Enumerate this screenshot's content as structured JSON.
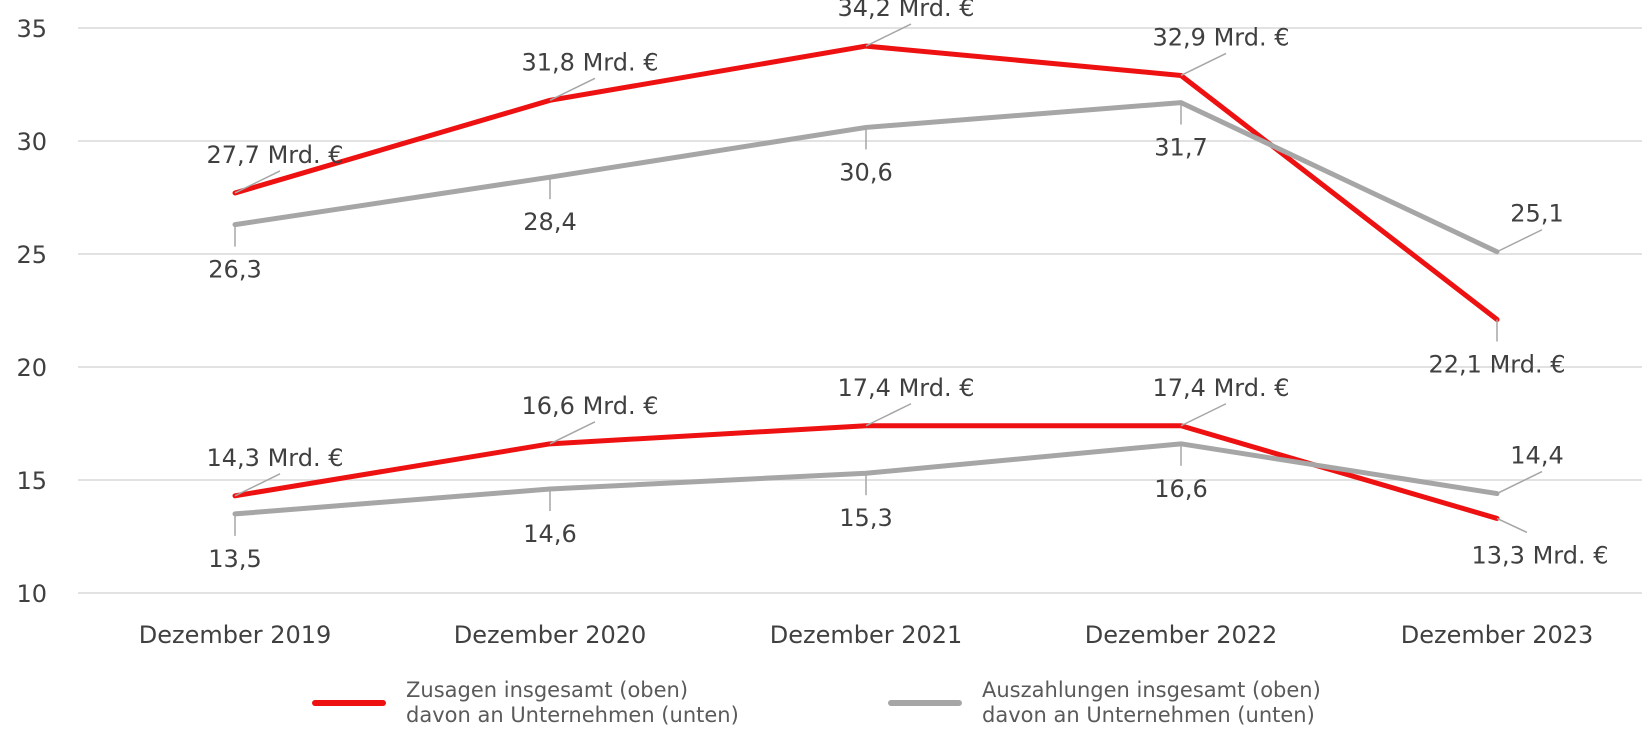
{
  "chart_data": {
    "type": "line",
    "categories": [
      "Dezember 2019",
      "Dezember 2020",
      "Dezember 2021",
      "Dezember 2022",
      "Dezember 2023"
    ],
    "ylim": [
      10,
      35
    ],
    "yticks": [
      "10",
      "15",
      "20",
      "25",
      "30",
      "35"
    ],
    "grid": true,
    "legend_position": "bottom",
    "series": [
      {
        "name": "Zusagen insgesamt (oben)",
        "color": "#ee1111",
        "values": [
          27.7,
          31.8,
          34.2,
          32.9,
          22.1
        ],
        "labels": [
          "27,7 Mrd. €",
          "31,8 Mrd. €",
          "34,2 Mrd. €",
          "32,9 Mrd. €",
          "22,1 Mrd. €"
        ]
      },
      {
        "name": "Auszahlungen insgesamt (oben)",
        "color": "#a6a6a6",
        "values": [
          26.3,
          28.4,
          30.6,
          31.7,
          25.1
        ],
        "labels": [
          "26,3",
          "28,4",
          "30,6",
          "31,7",
          "25,1"
        ]
      },
      {
        "name": "Zusagen davon an Unternehmen (unten)",
        "color": "#ee1111",
        "values": [
          14.3,
          16.6,
          17.4,
          17.4,
          13.3
        ],
        "labels": [
          "14,3 Mrd. €",
          "16,6 Mrd. €",
          "17,4 Mrd. €",
          "17,4 Mrd. €",
          "13,3 Mrd. €"
        ]
      },
      {
        "name": "Auszahlungen davon an Unternehmen (unten)",
        "color": "#a6a6a6",
        "values": [
          13.5,
          14.6,
          15.3,
          16.6,
          14.4
        ],
        "labels": [
          "13,5",
          "14,6",
          "15,3",
          "16,6",
          "14,4"
        ]
      }
    ]
  },
  "legend": {
    "zusagen": {
      "line1": "Zusagen insgesamt (oben)",
      "line2": "davon an Unternehmen (unten)",
      "color": "#ee1111"
    },
    "auszahlungen": {
      "line1": "Auszahlungen insgesamt (oben)",
      "line2": "davon an Unternehmen (unten)",
      "color": "#a6a6a6"
    }
  }
}
